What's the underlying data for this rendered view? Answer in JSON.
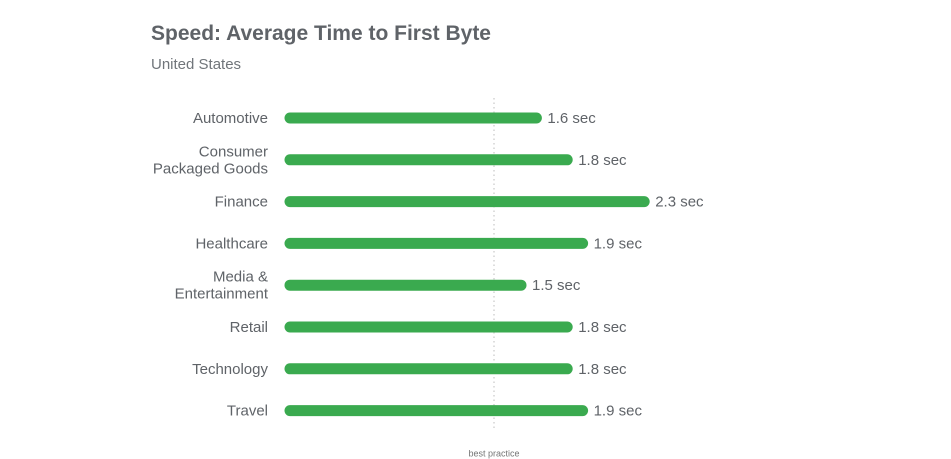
{
  "chart_data": {
    "type": "bar",
    "orientation": "horizontal",
    "title": "Speed: Average Time to First Byte",
    "subtitle": "United States",
    "categories": [
      [
        "Automotive"
      ],
      [
        "Consumer",
        "Packaged Goods"
      ],
      [
        "Finance"
      ],
      [
        "Healthcare"
      ],
      [
        "Media &",
        "Entertainment"
      ],
      [
        "Retail"
      ],
      [
        "Technology"
      ],
      [
        "Travel"
      ]
    ],
    "values": [
      1.6,
      1.8,
      2.3,
      1.9,
      1.5,
      1.8,
      1.8,
      1.9
    ],
    "value_labels": [
      "1.6 sec",
      "1.8 sec",
      "2.3 sec",
      "1.9 sec",
      "1.5 sec",
      "1.8 sec",
      "1.8 sec",
      "1.9 sec"
    ],
    "reference_line": {
      "label": "best practice",
      "style": "dotted"
    },
    "grid": false,
    "legend": "none",
    "colors": {
      "bar": "#3aaa4f",
      "text": "#5f6368",
      "title": "#5f6368",
      "subtitle": "#70757a",
      "reference_line": "#bdbdbd"
    }
  }
}
